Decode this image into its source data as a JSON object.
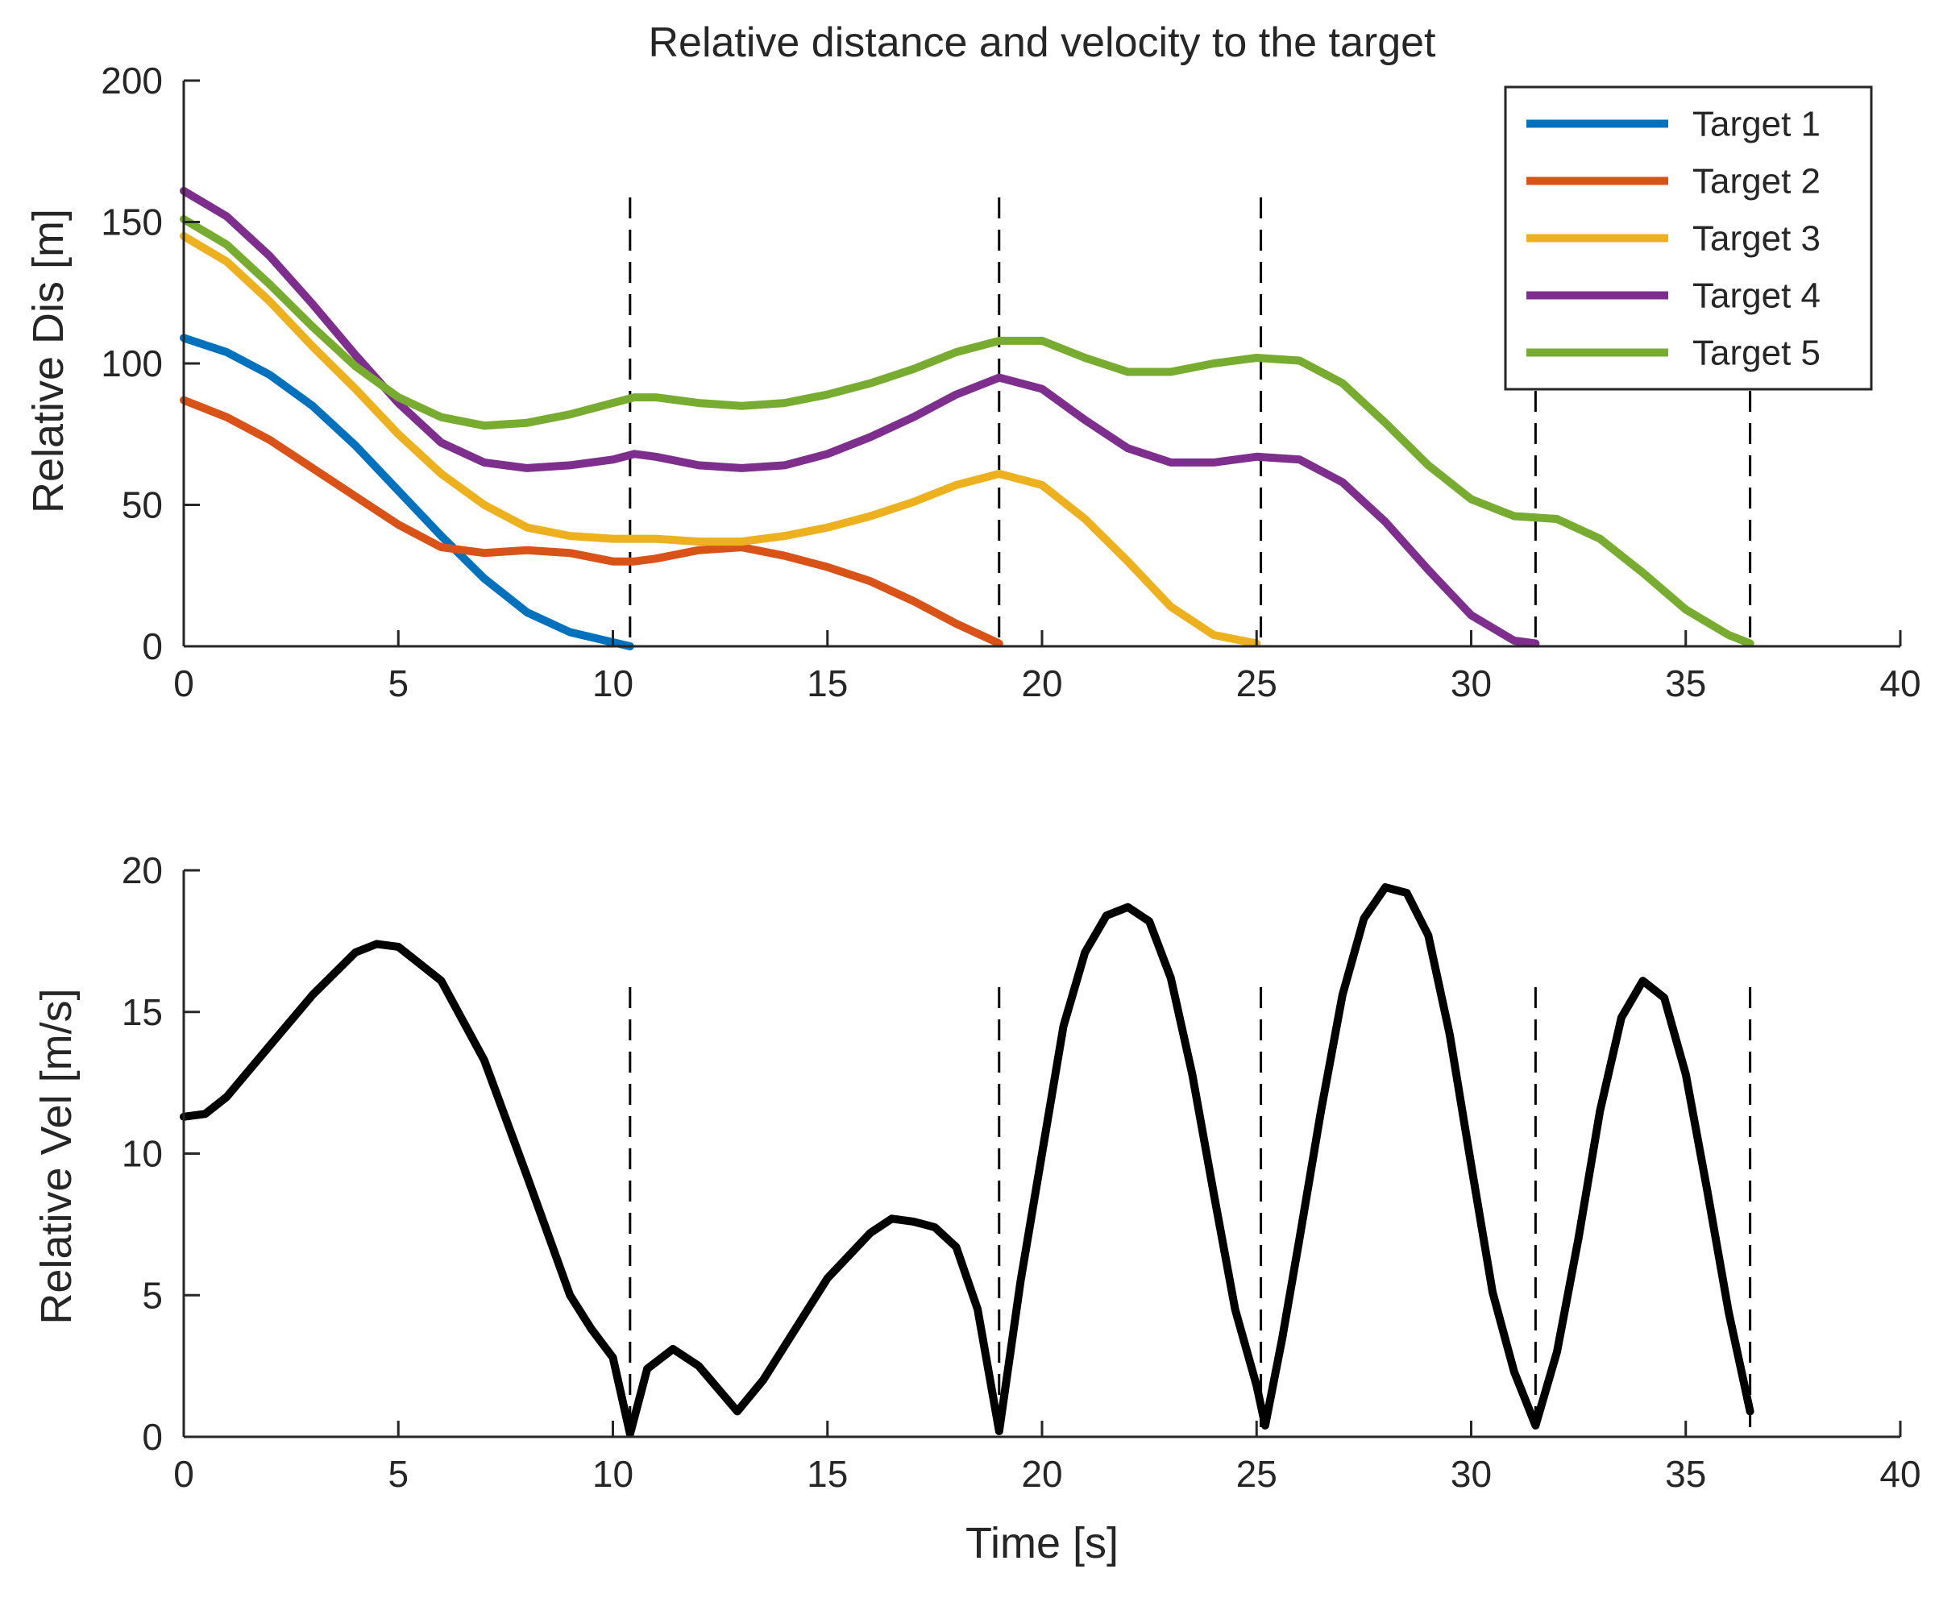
{
  "title": "Relative distance and velocity to the target",
  "event_times": [
    10.4,
    19.0,
    25.1,
    31.5,
    36.5
  ],
  "chart_data": [
    {
      "id": "distance",
      "type": "line",
      "xlabel": "",
      "ylabel": "Relative Dis [m]",
      "xlim": [
        0,
        40
      ],
      "ylim": [
        0,
        200
      ],
      "xticks": [
        0,
        5,
        10,
        15,
        20,
        25,
        30,
        35,
        40
      ],
      "yticks": [
        0,
        50,
        100,
        150,
        200
      ],
      "legend_position": "top-right",
      "series": [
        {
          "name": "Target 1",
          "color": "#0072BD",
          "points": [
            [
              0,
              109
            ],
            [
              1,
              104
            ],
            [
              2,
              96
            ],
            [
              3,
              85
            ],
            [
              4,
              71
            ],
            [
              5,
              55
            ],
            [
              6,
              39
            ],
            [
              7,
              24
            ],
            [
              8,
              12
            ],
            [
              9,
              5
            ],
            [
              10.4,
              0
            ]
          ]
        },
        {
          "name": "Target 2",
          "color": "#D95319",
          "points": [
            [
              0,
              87
            ],
            [
              1,
              81
            ],
            [
              2,
              73
            ],
            [
              3,
              63
            ],
            [
              4,
              53
            ],
            [
              5,
              43
            ],
            [
              6,
              35
            ],
            [
              7,
              33
            ],
            [
              8,
              34
            ],
            [
              9,
              33
            ],
            [
              10,
              30
            ],
            [
              10.5,
              30
            ],
            [
              11,
              31
            ],
            [
              12,
              34
            ],
            [
              13,
              35
            ],
            [
              14,
              32
            ],
            [
              15,
              28
            ],
            [
              16,
              23
            ],
            [
              17,
              16
            ],
            [
              18,
              8
            ],
            [
              19,
              1
            ]
          ]
        },
        {
          "name": "Target 3",
          "color": "#EDB120",
          "points": [
            [
              0,
              145
            ],
            [
              1,
              136
            ],
            [
              2,
              122
            ],
            [
              3,
              106
            ],
            [
              4,
              91
            ],
            [
              5,
              75
            ],
            [
              6,
              61
            ],
            [
              7,
              50
            ],
            [
              8,
              42
            ],
            [
              9,
              39
            ],
            [
              10,
              38
            ],
            [
              11,
              38
            ],
            [
              12,
              37
            ],
            [
              13,
              37
            ],
            [
              14,
              39
            ],
            [
              15,
              42
            ],
            [
              16,
              46
            ],
            [
              17,
              51
            ],
            [
              18,
              57
            ],
            [
              19,
              61
            ],
            [
              20,
              57
            ],
            [
              21,
              45
            ],
            [
              22,
              30
            ],
            [
              23,
              14
            ],
            [
              24,
              4
            ],
            [
              25,
              1
            ]
          ]
        },
        {
          "name": "Target 4",
          "color": "#7E2F8E",
          "points": [
            [
              0,
              161
            ],
            [
              1,
              152
            ],
            [
              2,
              138
            ],
            [
              3,
              121
            ],
            [
              4,
              103
            ],
            [
              5,
              86
            ],
            [
              6,
              72
            ],
            [
              7,
              65
            ],
            [
              8,
              63
            ],
            [
              9,
              64
            ],
            [
              10,
              66
            ],
            [
              10.5,
              68
            ],
            [
              11,
              67
            ],
            [
              12,
              64
            ],
            [
              13,
              63
            ],
            [
              14,
              64
            ],
            [
              15,
              68
            ],
            [
              16,
              74
            ],
            [
              17,
              81
            ],
            [
              18,
              89
            ],
            [
              19,
              95
            ],
            [
              20,
              91
            ],
            [
              21,
              80
            ],
            [
              22,
              70
            ],
            [
              23,
              65
            ],
            [
              24,
              65
            ],
            [
              25,
              67
            ],
            [
              26,
              66
            ],
            [
              27,
              58
            ],
            [
              28,
              44
            ],
            [
              29,
              27
            ],
            [
              30,
              11
            ],
            [
              31,
              2
            ],
            [
              31.5,
              1
            ]
          ]
        },
        {
          "name": "Target 5",
          "color": "#77AC30",
          "points": [
            [
              0,
              151
            ],
            [
              1,
              142
            ],
            [
              2,
              128
            ],
            [
              3,
              113
            ],
            [
              4,
              99
            ],
            [
              5,
              88
            ],
            [
              6,
              81
            ],
            [
              7,
              78
            ],
            [
              8,
              79
            ],
            [
              9,
              82
            ],
            [
              10,
              86
            ],
            [
              10.5,
              88
            ],
            [
              11,
              88
            ],
            [
              12,
              86
            ],
            [
              13,
              85
            ],
            [
              14,
              86
            ],
            [
              15,
              89
            ],
            [
              16,
              93
            ],
            [
              17,
              98
            ],
            [
              18,
              104
            ],
            [
              19,
              108
            ],
            [
              20,
              108
            ],
            [
              21,
              102
            ],
            [
              22,
              97
            ],
            [
              23,
              97
            ],
            [
              24,
              100
            ],
            [
              25,
              102
            ],
            [
              26,
              101
            ],
            [
              27,
              93
            ],
            [
              28,
              79
            ],
            [
              29,
              64
            ],
            [
              30,
              52
            ],
            [
              31,
              46
            ],
            [
              32,
              45
            ],
            [
              33,
              38
            ],
            [
              34,
              26
            ],
            [
              35,
              13
            ],
            [
              36,
              4
            ],
            [
              36.5,
              1
            ]
          ]
        }
      ]
    },
    {
      "id": "velocity",
      "type": "line",
      "xlabel": "Time [s]",
      "ylabel": "Relative Vel [m/s]",
      "xlim": [
        0,
        40
      ],
      "ylim": [
        0,
        20
      ],
      "xticks": [
        0,
        5,
        10,
        15,
        20,
        25,
        30,
        35,
        40
      ],
      "yticks": [
        0,
        5,
        10,
        15,
        20
      ],
      "series": [
        {
          "name": "Relative Vel",
          "color": "#000000",
          "points": [
            [
              0,
              11.3
            ],
            [
              0.5,
              11.4
            ],
            [
              1,
              12
            ],
            [
              2,
              13.8
            ],
            [
              3,
              15.6
            ],
            [
              4,
              17.1
            ],
            [
              4.5,
              17.4
            ],
            [
              5,
              17.3
            ],
            [
              6,
              16.1
            ],
            [
              7,
              13.3
            ],
            [
              8,
              9.2
            ],
            [
              9,
              5.0
            ],
            [
              9.5,
              3.8
            ],
            [
              10,
              2.8
            ],
            [
              10.4,
              0.1
            ],
            [
              10.8,
              2.4
            ],
            [
              11.4,
              3.1
            ],
            [
              12,
              2.5
            ],
            [
              12.9,
              0.9
            ],
            [
              13.5,
              2.0
            ],
            [
              14,
              3.2
            ],
            [
              15,
              5.6
            ],
            [
              16,
              7.2
            ],
            [
              16.5,
              7.7
            ],
            [
              17,
              7.6
            ],
            [
              17.5,
              7.4
            ],
            [
              18,
              6.7
            ],
            [
              18.5,
              4.5
            ],
            [
              19,
              0.2
            ],
            [
              19.5,
              5.5
            ],
            [
              20,
              10.0
            ],
            [
              20.5,
              14.5
            ],
            [
              21,
              17.1
            ],
            [
              21.5,
              18.4
            ],
            [
              22,
              18.7
            ],
            [
              22.5,
              18.2
            ],
            [
              23,
              16.2
            ],
            [
              23.5,
              12.8
            ],
            [
              24,
              8.6
            ],
            [
              24.5,
              4.5
            ],
            [
              25,
              1.8
            ],
            [
              25.2,
              0.4
            ],
            [
              25.6,
              3.5
            ],
            [
              26,
              7.0
            ],
            [
              26.5,
              11.5
            ],
            [
              27,
              15.6
            ],
            [
              27.5,
              18.3
            ],
            [
              28,
              19.4
            ],
            [
              28.5,
              19.2
            ],
            [
              29,
              17.7
            ],
            [
              29.5,
              14.2
            ],
            [
              30,
              9.6
            ],
            [
              30.5,
              5.1
            ],
            [
              31,
              2.3
            ],
            [
              31.5,
              0.4
            ],
            [
              32,
              3.0
            ],
            [
              32.5,
              7.0
            ],
            [
              33,
              11.5
            ],
            [
              33.5,
              14.8
            ],
            [
              34,
              16.1
            ],
            [
              34.5,
              15.5
            ],
            [
              35,
              12.8
            ],
            [
              35.5,
              8.7
            ],
            [
              36,
              4.4
            ],
            [
              36.5,
              0.9
            ]
          ]
        }
      ]
    }
  ]
}
